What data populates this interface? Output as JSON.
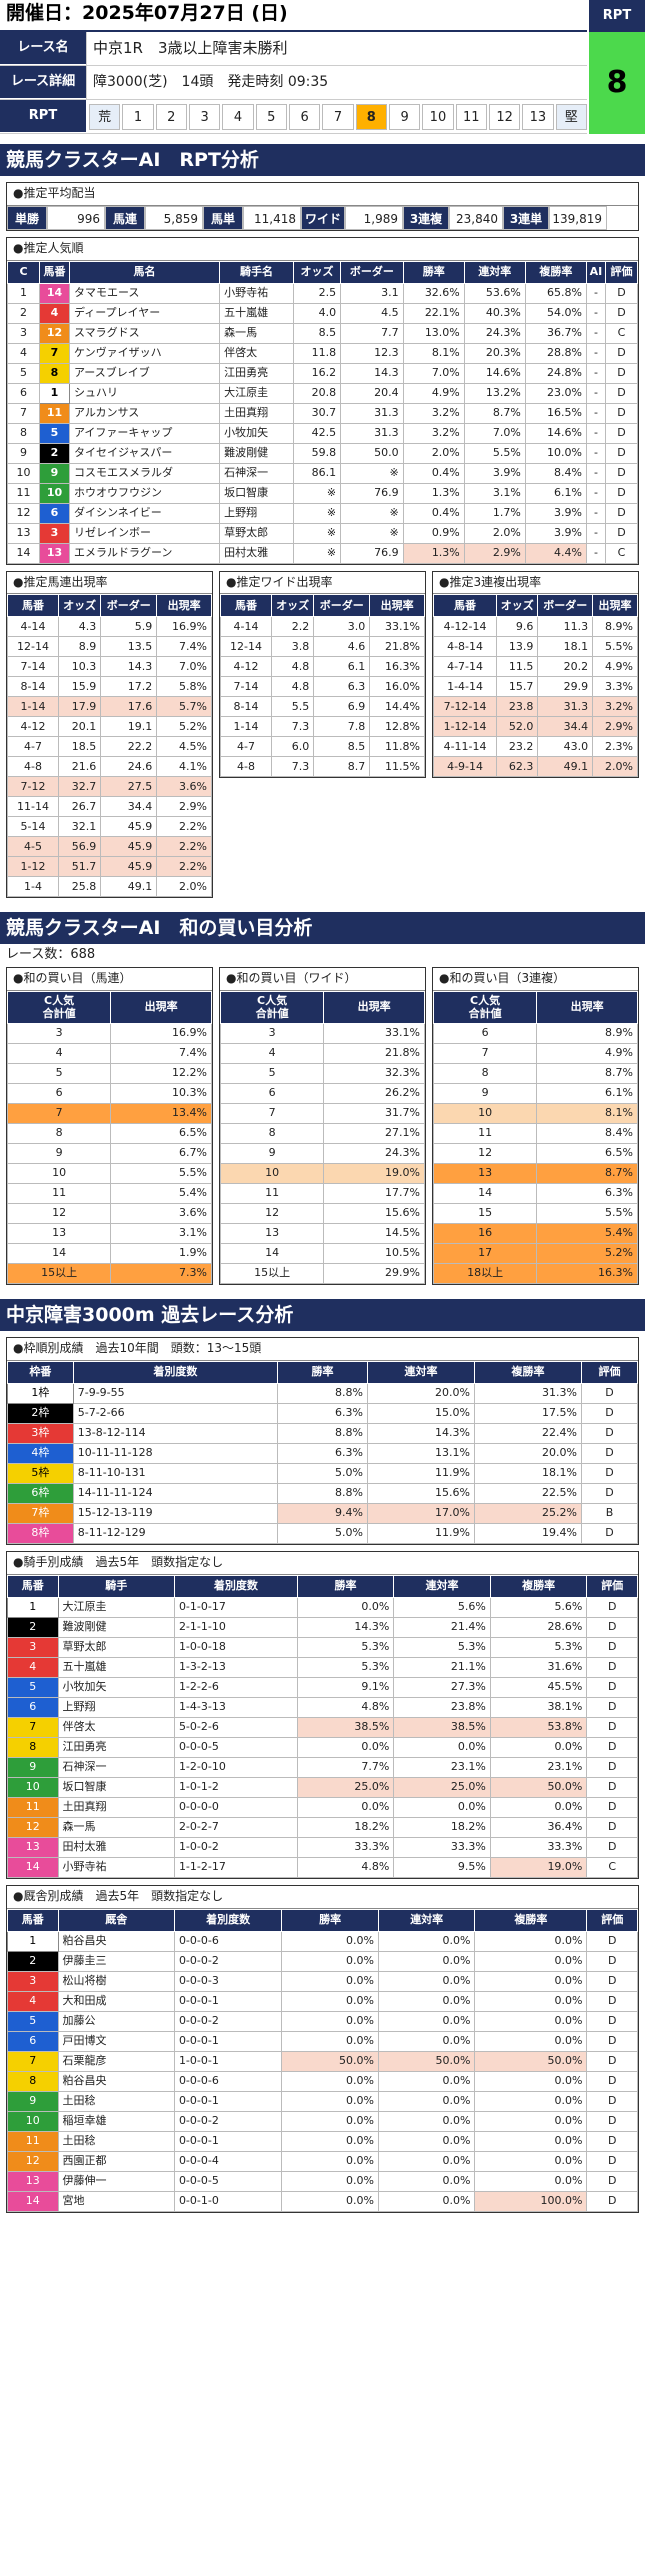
{
  "date": "開催日：2025年07月27日 (日)",
  "header": {
    "race_name_label": "レース名",
    "race_name": "中京1R　3歳以上障害未勝利",
    "race_detail_label": "レース詳細",
    "race_detail": "障3000(芝)　14頭　発走時刻 09:35",
    "rpt_label": "RPT",
    "rpt_values": [
      "荒",
      "1",
      "2",
      "3",
      "4",
      "5",
      "6",
      "7",
      "8",
      "9",
      "10",
      "11",
      "12",
      "13",
      "堅"
    ],
    "rpt_selected": "8",
    "rpt_box_label": "RPT",
    "rpt_box_value": "8"
  },
  "section1": {
    "title": "競馬クラスターAI　RPT分析"
  },
  "avg_payout": {
    "title": "●推定平均配当",
    "items": [
      {
        "label": "単勝",
        "value": "996"
      },
      {
        "label": "馬連",
        "value": "5,859"
      },
      {
        "label": "馬単",
        "value": "11,418"
      },
      {
        "label": "ワイド",
        "value": "1,989"
      },
      {
        "label": "3連複",
        "value": "23,840"
      },
      {
        "label": "3連単",
        "value": "139,819"
      }
    ]
  },
  "popularity": {
    "title": "●推定人気順",
    "headers": [
      "C",
      "馬番",
      "馬名",
      "騎手名",
      "オッズ",
      "ボーダー",
      "勝率",
      "連対率",
      "複勝率",
      "AI",
      "評価"
    ],
    "rows": [
      [
        "1",
        "14",
        "タマモエース",
        "小野寺祐",
        "2.5",
        "3.1",
        "32.6%",
        "53.6%",
        "65.8%",
        "-",
        "D"
      ],
      [
        "2",
        "4",
        "ディープレイヤー",
        "五十嵐雄",
        "4.0",
        "4.5",
        "22.1%",
        "40.3%",
        "54.0%",
        "-",
        "D"
      ],
      [
        "3",
        "12",
        "スマラグドス",
        "森一馬",
        "8.5",
        "7.7",
        "13.0%",
        "24.3%",
        "36.7%",
        "-",
        "C"
      ],
      [
        "4",
        "7",
        "ケンヴァイザッハ",
        "伴啓太",
        "11.8",
        "12.3",
        "8.1%",
        "20.3%",
        "28.8%",
        "-",
        "D"
      ],
      [
        "5",
        "8",
        "アースブレイブ",
        "江田勇亮",
        "16.2",
        "14.3",
        "7.0%",
        "14.6%",
        "24.8%",
        "-",
        "D"
      ],
      [
        "6",
        "1",
        "シュハリ",
        "大江原圭",
        "20.8",
        "20.4",
        "4.9%",
        "13.2%",
        "23.0%",
        "-",
        "D"
      ],
      [
        "7",
        "11",
        "アルカンサス",
        "土田真翔",
        "30.7",
        "31.3",
        "3.2%",
        "8.7%",
        "16.5%",
        "-",
        "D"
      ],
      [
        "8",
        "5",
        "アイファーキャップ",
        "小牧加矢",
        "42.5",
        "31.3",
        "3.2%",
        "7.0%",
        "14.6%",
        "-",
        "D"
      ],
      [
        "9",
        "2",
        "タイセイジャスパー",
        "難波剛健",
        "59.8",
        "50.0",
        "2.0%",
        "5.5%",
        "10.0%",
        "-",
        "D"
      ],
      [
        "10",
        "9",
        "コスモエスメラルダ",
        "石神深一",
        "86.1",
        "※",
        "0.4%",
        "3.9%",
        "8.4%",
        "-",
        "D"
      ],
      [
        "11",
        "10",
        "ホウオウフウジン",
        "坂口智康",
        "※",
        "76.9",
        "1.3%",
        "3.1%",
        "6.1%",
        "-",
        "D"
      ],
      [
        "12",
        "6",
        "ダイシンネイビー",
        "上野翔",
        "※",
        "※",
        "0.4%",
        "1.7%",
        "3.9%",
        "-",
        "D"
      ],
      [
        "13",
        "3",
        "リゼレインボー",
        "草野太郎",
        "※",
        "※",
        "0.9%",
        "2.0%",
        "3.9%",
        "-",
        "D"
      ],
      [
        "14",
        "13",
        "エメラルドラグーン",
        "田村太雅",
        "※",
        "76.9",
        "1.3%",
        "2.9%",
        "4.4%",
        "-",
        "C"
      ]
    ]
  },
  "umaren": {
    "title": "●推定馬連出現率",
    "headers": [
      "馬番",
      "オッズ",
      "ボーダー",
      "出現率"
    ],
    "rows": [
      [
        "4-14",
        "4.3",
        "5.9",
        "16.9%"
      ],
      [
        "12-14",
        "8.9",
        "13.5",
        "7.4%"
      ],
      [
        "7-14",
        "10.3",
        "14.3",
        "7.0%"
      ],
      [
        "8-14",
        "15.9",
        "17.2",
        "5.8%"
      ],
      [
        "1-14",
        "17.9",
        "17.6",
        "5.7%"
      ],
      [
        "4-12",
        "20.1",
        "19.1",
        "5.2%"
      ],
      [
        "4-7",
        "18.5",
        "22.2",
        "4.5%"
      ],
      [
        "4-8",
        "21.6",
        "24.6",
        "4.1%"
      ],
      [
        "7-12",
        "32.7",
        "27.5",
        "3.6%"
      ],
      [
        "11-14",
        "26.7",
        "34.4",
        "2.9%"
      ],
      [
        "5-14",
        "32.1",
        "45.9",
        "2.2%"
      ],
      [
        "4-5",
        "56.9",
        "45.9",
        "2.2%"
      ],
      [
        "1-12",
        "51.7",
        "45.9",
        "2.2%"
      ],
      [
        "1-4",
        "25.8",
        "49.1",
        "2.0%"
      ]
    ]
  },
  "wide": {
    "title": "●推定ワイド出現率",
    "headers": [
      "馬番",
      "オッズ",
      "ボーダー",
      "出現率"
    ],
    "rows": [
      [
        "4-14",
        "2.2",
        "3.0",
        "33.1%"
      ],
      [
        "12-14",
        "3.8",
        "4.6",
        "21.8%"
      ],
      [
        "4-12",
        "4.8",
        "6.1",
        "16.3%"
      ],
      [
        "7-14",
        "4.8",
        "6.3",
        "16.0%"
      ],
      [
        "8-14",
        "5.5",
        "6.9",
        "14.4%"
      ],
      [
        "1-14",
        "7.3",
        "7.8",
        "12.8%"
      ],
      [
        "4-7",
        "6.0",
        "8.5",
        "11.8%"
      ],
      [
        "4-8",
        "7.3",
        "8.7",
        "11.5%"
      ]
    ]
  },
  "sanrenpuku": {
    "title": "●推定3連複出現率",
    "headers": [
      "馬番",
      "オッズ",
      "ボーダー",
      "出現率"
    ],
    "rows": [
      [
        "4-12-14",
        "9.6",
        "11.3",
        "8.9%"
      ],
      [
        "4-8-14",
        "13.9",
        "18.1",
        "5.5%"
      ],
      [
        "4-7-14",
        "11.5",
        "20.2",
        "4.9%"
      ],
      [
        "1-4-14",
        "15.7",
        "29.9",
        "3.3%"
      ],
      [
        "7-12-14",
        "23.8",
        "31.3",
        "3.2%"
      ],
      [
        "1-12-14",
        "52.0",
        "34.4",
        "2.9%"
      ],
      [
        "4-11-14",
        "23.2",
        "43.0",
        "2.3%"
      ],
      [
        "4-9-14",
        "62.3",
        "49.1",
        "2.0%"
      ]
    ]
  },
  "section2": {
    "title": "競馬クラスターAI　和の買い目分析",
    "race_count": "レース数：688"
  },
  "sum_umaren": {
    "title": "●和の買い目（馬連）",
    "headers": [
      "C人気\n合計値",
      "出現率"
    ],
    "rows": [
      [
        "3",
        "16.9%"
      ],
      [
        "4",
        "7.4%"
      ],
      [
        "5",
        "12.2%"
      ],
      [
        "6",
        "10.3%"
      ],
      [
        "7",
        "13.4%"
      ],
      [
        "8",
        "6.5%"
      ],
      [
        "9",
        "6.7%"
      ],
      [
        "10",
        "5.5%"
      ],
      [
        "11",
        "5.4%"
      ],
      [
        "12",
        "3.6%"
      ],
      [
        "13",
        "3.1%"
      ],
      [
        "14",
        "1.9%"
      ],
      [
        "15以上",
        "7.3%"
      ]
    ]
  },
  "sum_wide": {
    "title": "●和の買い目（ワイド）",
    "headers": [
      "C人気\n合計値",
      "出現率"
    ],
    "rows": [
      [
        "3",
        "33.1%"
      ],
      [
        "4",
        "21.8%"
      ],
      [
        "5",
        "32.3%"
      ],
      [
        "6",
        "26.2%"
      ],
      [
        "7",
        "31.7%"
      ],
      [
        "8",
        "27.1%"
      ],
      [
        "9",
        "24.3%"
      ],
      [
        "10",
        "19.0%"
      ],
      [
        "11",
        "17.7%"
      ],
      [
        "12",
        "15.6%"
      ],
      [
        "13",
        "14.5%"
      ],
      [
        "14",
        "10.5%"
      ],
      [
        "15以上",
        "29.9%"
      ]
    ]
  },
  "sum_3renpuku": {
    "title": "●和の買い目（3連複）",
    "headers": [
      "C人気\n合計値",
      "出現率"
    ],
    "rows": [
      [
        "6",
        "8.9%"
      ],
      [
        "7",
        "4.9%"
      ],
      [
        "8",
        "8.7%"
      ],
      [
        "9",
        "6.1%"
      ],
      [
        "10",
        "8.1%"
      ],
      [
        "11",
        "8.4%"
      ],
      [
        "12",
        "6.5%"
      ],
      [
        "13",
        "8.7%"
      ],
      [
        "14",
        "6.3%"
      ],
      [
        "15",
        "5.5%"
      ],
      [
        "16",
        "5.4%"
      ],
      [
        "17",
        "5.2%"
      ],
      [
        "18以上",
        "16.3%"
      ]
    ]
  },
  "section3": {
    "title": "中京障害3000m 過去レース分析"
  },
  "waku": {
    "title": "●枠順別成績　過去10年間　頭数：13～15頭",
    "headers": [
      "枠番",
      "着別度数",
      "勝率",
      "連対率",
      "複勝率",
      "評価"
    ],
    "rows": [
      [
        "1枠",
        "7-9-9-55",
        "8.8%",
        "20.0%",
        "31.3%",
        "D"
      ],
      [
        "2枠",
        "5-7-2-66",
        "6.3%",
        "15.0%",
        "17.5%",
        "D"
      ],
      [
        "3枠",
        "13-8-12-114",
        "8.8%",
        "14.3%",
        "22.4%",
        "D"
      ],
      [
        "4枠",
        "10-11-11-128",
        "6.3%",
        "13.1%",
        "20.0%",
        "D"
      ],
      [
        "5枠",
        "8-11-10-131",
        "5.0%",
        "11.9%",
        "18.1%",
        "D"
      ],
      [
        "6枠",
        "14-11-11-124",
        "8.8%",
        "15.6%",
        "22.5%",
        "D"
      ],
      [
        "7枠",
        "15-12-13-119",
        "9.4%",
        "17.0%",
        "25.2%",
        "B"
      ],
      [
        "8枠",
        "8-11-12-129",
        "5.0%",
        "11.9%",
        "19.4%",
        "D"
      ]
    ]
  },
  "jockey": {
    "title": "●騎手別成績　過去5年　頭数指定なし",
    "headers": [
      "馬番",
      "騎手",
      "着別度数",
      "勝率",
      "連対率",
      "複勝率",
      "評価"
    ],
    "rows": [
      [
        "1",
        "大江原圭",
        "0-1-0-17",
        "0.0%",
        "5.6%",
        "5.6%",
        "D"
      ],
      [
        "2",
        "難波剛健",
        "2-1-1-10",
        "14.3%",
        "21.4%",
        "28.6%",
        "D"
      ],
      [
        "3",
        "草野太郎",
        "1-0-0-18",
        "5.3%",
        "5.3%",
        "5.3%",
        "D"
      ],
      [
        "4",
        "五十嵐雄",
        "1-3-2-13",
        "5.3%",
        "21.1%",
        "31.6%",
        "D"
      ],
      [
        "5",
        "小牧加矢",
        "1-2-2-6",
        "9.1%",
        "27.3%",
        "45.5%",
        "D"
      ],
      [
        "6",
        "上野翔",
        "1-4-3-13",
        "4.8%",
        "23.8%",
        "38.1%",
        "D"
      ],
      [
        "7",
        "伴啓太",
        "5-0-2-6",
        "38.5%",
        "38.5%",
        "53.8%",
        "D"
      ],
      [
        "8",
        "江田勇亮",
        "0-0-0-5",
        "0.0%",
        "0.0%",
        "0.0%",
        "D"
      ],
      [
        "9",
        "石神深一",
        "1-2-0-10",
        "7.7%",
        "23.1%",
        "23.1%",
        "D"
      ],
      [
        "10",
        "坂口智康",
        "1-0-1-2",
        "25.0%",
        "25.0%",
        "50.0%",
        "D"
      ],
      [
        "11",
        "土田真翔",
        "0-0-0-0",
        "0.0%",
        "0.0%",
        "0.0%",
        "D"
      ],
      [
        "12",
        "森一馬",
        "2-0-2-7",
        "18.2%",
        "18.2%",
        "36.4%",
        "D"
      ],
      [
        "13",
        "田村太雅",
        "1-0-0-2",
        "33.3%",
        "33.3%",
        "33.3%",
        "D"
      ],
      [
        "14",
        "小野寺祐",
        "1-1-2-17",
        "4.8%",
        "9.5%",
        "19.0%",
        "C"
      ]
    ]
  },
  "trainer": {
    "title": "●厩舎別成績　過去5年　頭数指定なし",
    "headers": [
      "馬番",
      "厩舎",
      "着別度数",
      "勝率",
      "連対率",
      "複勝率",
      "評価"
    ],
    "rows": [
      [
        "1",
        "粕谷昌央",
        "0-0-0-6",
        "0.0%",
        "0.0%",
        "0.0%",
        "D"
      ],
      [
        "2",
        "伊藤圭三",
        "0-0-0-2",
        "0.0%",
        "0.0%",
        "0.0%",
        "D"
      ],
      [
        "3",
        "松山将樹",
        "0-0-0-3",
        "0.0%",
        "0.0%",
        "0.0%",
        "D"
      ],
      [
        "4",
        "大和田成",
        "0-0-0-1",
        "0.0%",
        "0.0%",
        "0.0%",
        "D"
      ],
      [
        "5",
        "加藤公",
        "0-0-0-2",
        "0.0%",
        "0.0%",
        "0.0%",
        "D"
      ],
      [
        "6",
        "戸田博文",
        "0-0-0-1",
        "0.0%",
        "0.0%",
        "0.0%",
        "D"
      ],
      [
        "7",
        "石栗龍彦",
        "1-0-0-1",
        "50.0%",
        "50.0%",
        "50.0%",
        "D"
      ],
      [
        "8",
        "粕谷昌央",
        "0-0-0-6",
        "0.0%",
        "0.0%",
        "0.0%",
        "D"
      ],
      [
        "9",
        "土田稔",
        "0-0-0-1",
        "0.0%",
        "0.0%",
        "0.0%",
        "D"
      ],
      [
        "10",
        "稲垣幸雄",
        "0-0-0-2",
        "0.0%",
        "0.0%",
        "0.0%",
        "D"
      ],
      [
        "11",
        "土田稔",
        "0-0-0-1",
        "0.0%",
        "0.0%",
        "0.0%",
        "D"
      ],
      [
        "12",
        "西園正都",
        "0-0-0-4",
        "0.0%",
        "0.0%",
        "0.0%",
        "D"
      ],
      [
        "13",
        "伊藤伸一",
        "0-0-0-5",
        "0.0%",
        "0.0%",
        "0.0%",
        "D"
      ],
      [
        "14",
        "宮地",
        "0-0-1-0",
        "0.0%",
        "0.0%",
        "100.0%",
        "D"
      ]
    ]
  }
}
